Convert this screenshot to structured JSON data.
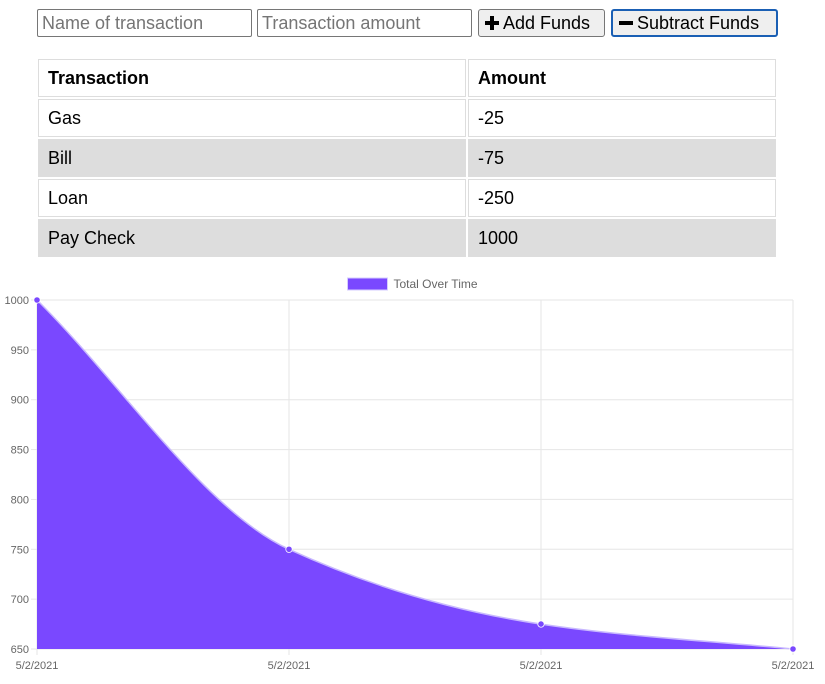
{
  "form": {
    "name_placeholder": "Name of transaction",
    "amount_placeholder": "Transaction amount",
    "add_label": "Add Funds",
    "subtract_label": "Subtract Funds",
    "add_icon": "plus-icon",
    "subtract_icon": "minus-icon"
  },
  "table": {
    "headers": [
      "Transaction",
      "Amount"
    ],
    "rows": [
      {
        "name": "Gas",
        "amount": "-25"
      },
      {
        "name": "Bill",
        "amount": "-75"
      },
      {
        "name": "Loan",
        "amount": "-250"
      },
      {
        "name": "Pay Check",
        "amount": "1000"
      }
    ]
  },
  "chart_data": {
    "type": "area",
    "title": "",
    "xlabel": "",
    "ylabel": "",
    "categories": [
      "5/2/2021",
      "5/2/2021",
      "5/2/2021",
      "5/2/2021"
    ],
    "series": [
      {
        "name": "Total Over Time",
        "values": [
          1000,
          750,
          675,
          650
        ],
        "color": "#7a48ff",
        "point_color": "#7a48ff"
      }
    ],
    "ylim": [
      650,
      1000
    ],
    "yticks": [
      1000,
      950,
      900,
      850,
      800,
      750,
      700,
      650
    ],
    "grid": true,
    "legend_position": "top"
  }
}
